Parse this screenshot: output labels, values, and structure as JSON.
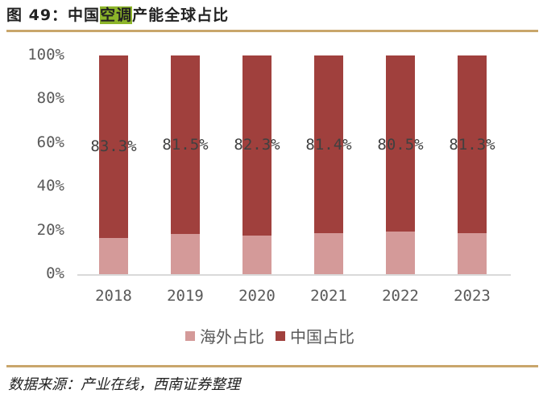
{
  "header": {
    "title_prefix": "图 49：中国",
    "title_highlight": "空调",
    "title_suffix": "产能全球占比"
  },
  "footer": {
    "source": "数据来源：产业在线，西南证券整理"
  },
  "colors": {
    "china": "#a0403d",
    "overseas": "#d49a99",
    "rule": "#c9a66b",
    "highlight": "#8db52a"
  },
  "chart_data": {
    "type": "bar",
    "stacked": true,
    "percent_stacked": true,
    "title": "中国空调产能全球占比",
    "xlabel": "",
    "ylabel": "",
    "ylim": [
      0,
      100
    ],
    "yticks": [
      "0%",
      "20%",
      "40%",
      "60%",
      "80%",
      "100%"
    ],
    "categories": [
      "2018",
      "2019",
      "2020",
      "2021",
      "2022",
      "2023"
    ],
    "series": [
      {
        "name": "海外占比",
        "color": "#d49a99",
        "values": [
          16.7,
          18.5,
          17.7,
          18.6,
          19.5,
          18.7
        ]
      },
      {
        "name": "中国占比",
        "color": "#a0403d",
        "values": [
          83.3,
          81.5,
          82.3,
          81.4,
          80.5,
          81.3
        ]
      }
    ],
    "data_labels": [
      "83.3%",
      "81.5%",
      "82.3%",
      "81.4%",
      "80.5%",
      "81.3%"
    ],
    "legend": [
      "海外占比",
      "中国占比"
    ],
    "legend_position": "bottom",
    "grid": false
  }
}
